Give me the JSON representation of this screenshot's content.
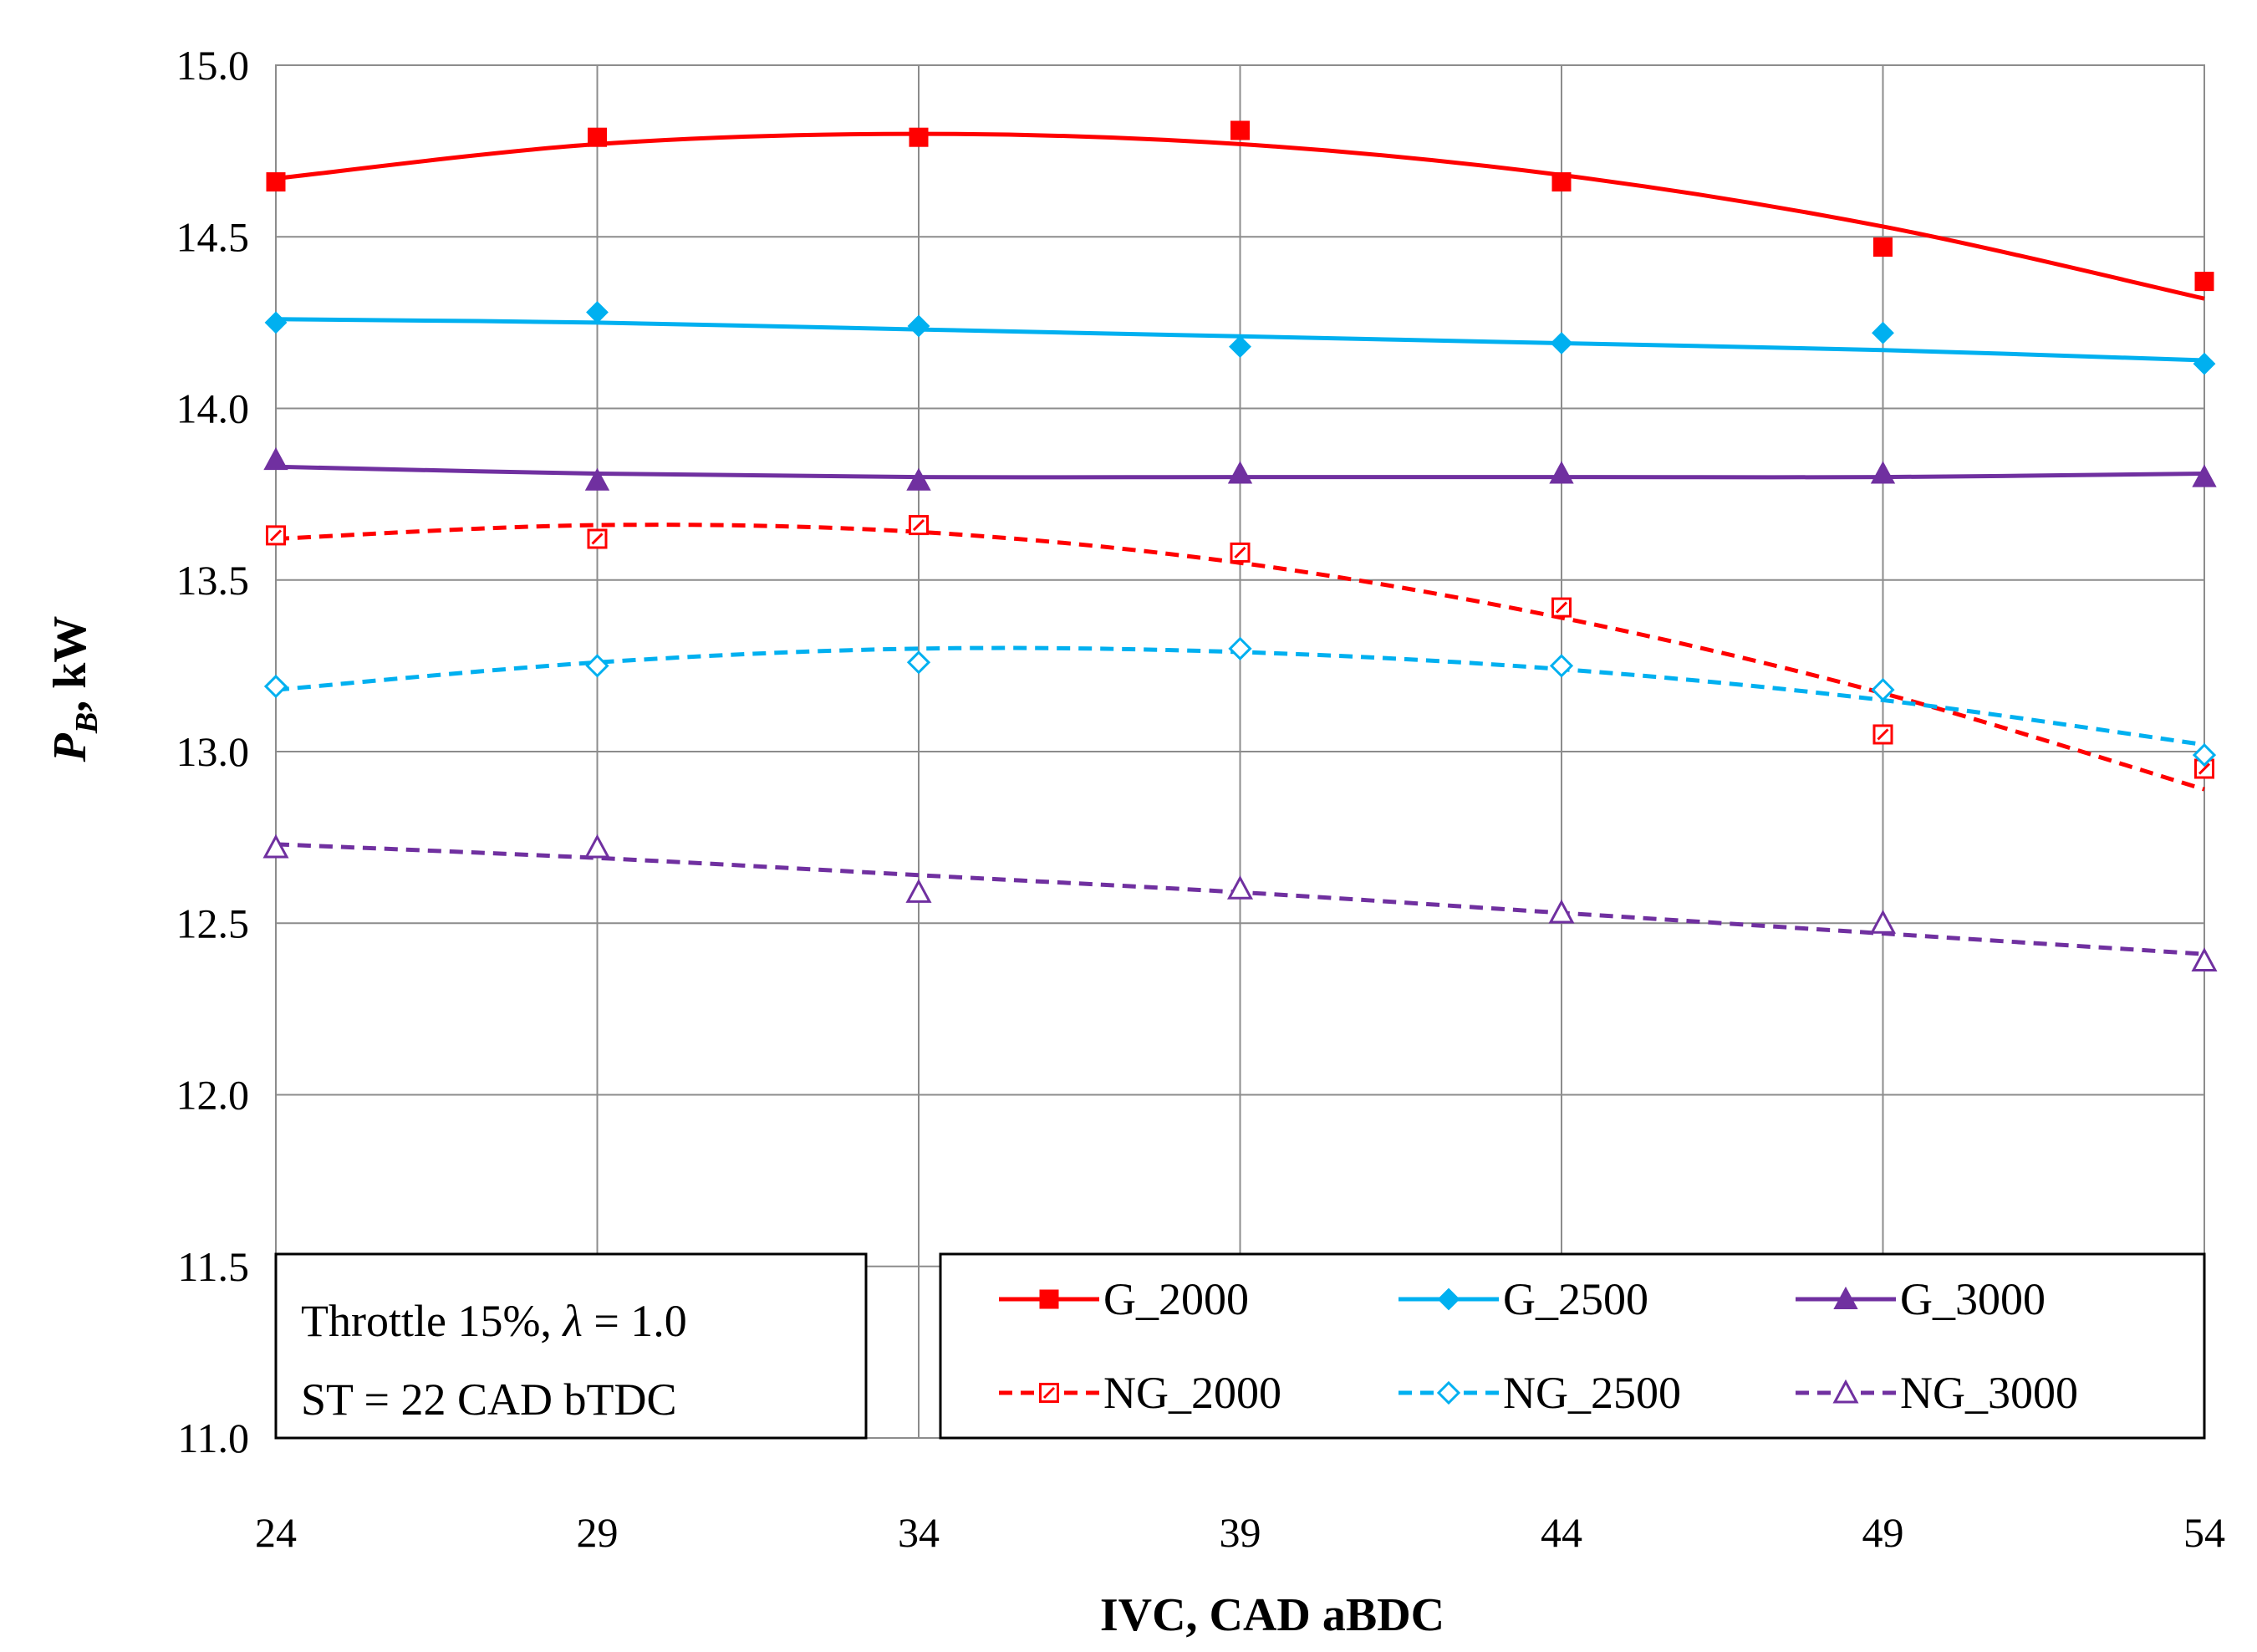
{
  "chart_data": {
    "type": "line",
    "xlabel": "IVC, CAD aBDC",
    "ylabel_main": "P",
    "ylabel_sub": "B",
    "ylabel_rest": ", kW",
    "xlim": [
      24,
      54
    ],
    "ylim": [
      11.0,
      15.0
    ],
    "xticks": [
      24,
      29,
      34,
      39,
      44,
      49,
      54
    ],
    "yticks": [
      11.0,
      11.5,
      12.0,
      12.5,
      13.0,
      13.5,
      14.0,
      14.5,
      15.0
    ],
    "grid": true,
    "legend_position": "bottom-right",
    "annotation": {
      "line1_prefix": "Throttle 15%, ",
      "line1_symbol": "λ",
      "line1_suffix": " = 1.0",
      "line2": "ST = 22 CAD bTDC"
    },
    "x": [
      24,
      29,
      34,
      39,
      44,
      49,
      54
    ],
    "series": [
      {
        "name": "G_2000",
        "color": "#ff0000",
        "marker": "square",
        "filled": true,
        "dashed": false,
        "values": [
          14.66,
          14.79,
          14.79,
          14.81,
          14.66,
          14.47,
          14.37
        ],
        "trend": [
          14.67,
          14.77,
          14.8,
          14.77,
          14.68,
          14.53,
          14.32
        ]
      },
      {
        "name": "G_2500",
        "color": "#00b0f0",
        "marker": "diamond",
        "filled": true,
        "dashed": false,
        "values": [
          14.25,
          14.28,
          14.24,
          14.18,
          14.19,
          14.22,
          14.13
        ],
        "trend": [
          14.26,
          14.25,
          14.23,
          14.21,
          14.19,
          14.17,
          14.14
        ]
      },
      {
        "name": "G_3000",
        "color": "#7030a0",
        "marker": "triangle",
        "filled": true,
        "dashed": false,
        "values": [
          13.85,
          13.79,
          13.79,
          13.81,
          13.81,
          13.81,
          13.8
        ],
        "trend": [
          13.83,
          13.81,
          13.8,
          13.8,
          13.8,
          13.8,
          13.81
        ]
      },
      {
        "name": "NG_2000",
        "color": "#ff0000",
        "marker": "square",
        "filled": false,
        "dashed": true,
        "values": [
          13.63,
          13.62,
          13.66,
          13.58,
          13.42,
          13.05,
          12.95
        ],
        "trend": [
          13.62,
          13.66,
          13.64,
          13.55,
          13.39,
          13.17,
          12.89
        ]
      },
      {
        "name": "NG_2500",
        "color": "#00b0f0",
        "marker": "diamond",
        "filled": false,
        "dashed": true,
        "values": [
          13.19,
          13.25,
          13.26,
          13.3,
          13.25,
          13.18,
          12.99
        ],
        "trend": [
          13.18,
          13.26,
          13.3,
          13.29,
          13.24,
          13.15,
          13.02
        ]
      },
      {
        "name": "NG_3000",
        "color": "#7030a0",
        "marker": "triangle",
        "filled": false,
        "dashed": true,
        "values": [
          12.72,
          12.72,
          12.59,
          12.6,
          12.53,
          12.5,
          12.39
        ],
        "trend": [
          12.73,
          12.69,
          12.64,
          12.59,
          12.53,
          12.47,
          12.41
        ]
      }
    ]
  }
}
